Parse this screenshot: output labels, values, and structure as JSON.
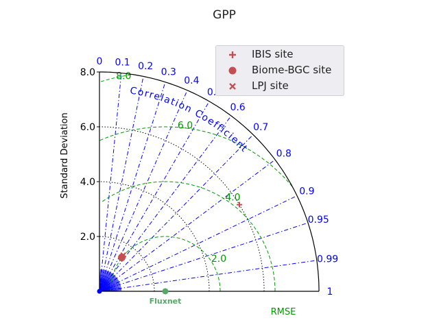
{
  "chart_data": {
    "type": "taylor-diagram",
    "title": "GPP",
    "ylabel": "Standard Deviation",
    "std_ticks": [
      "2.0",
      "4.0",
      "6.0",
      "8.0"
    ],
    "std_max": 8.0,
    "corr_ticks": [
      "0",
      "0.1",
      "0.2",
      "0.3",
      "0.4",
      "0.5",
      "0.6",
      "0.7",
      "0.8",
      "0.9",
      "0.95",
      "0.99",
      "1"
    ],
    "corr_label": "Correlation Coefficient",
    "rmse_ticks": [
      "2.0",
      "4.0",
      "6.0",
      "8.0"
    ],
    "rmse_label": "RMSE",
    "reference": {
      "label": "Fluxnet",
      "std": 2.4
    },
    "points": [
      {
        "name": "IBIS site",
        "marker": "plus",
        "std": 6.0,
        "corr": 0.85,
        "color": "#c44e52"
      },
      {
        "name": "Biome-BGC site",
        "marker": "circle",
        "std": 1.48,
        "corr": 0.55,
        "color": "#c44e52"
      },
      {
        "name": "LPJ site",
        "marker": "x",
        "std": 1.58,
        "corr": 0.55,
        "color": "#c44e52"
      }
    ],
    "colors": {
      "axes": "#000000",
      "corr_lines": "#0000ff",
      "rmse_lines": "#009900",
      "std_lines": "#000000",
      "reference": "#55a868",
      "points": "#c44e52"
    }
  }
}
